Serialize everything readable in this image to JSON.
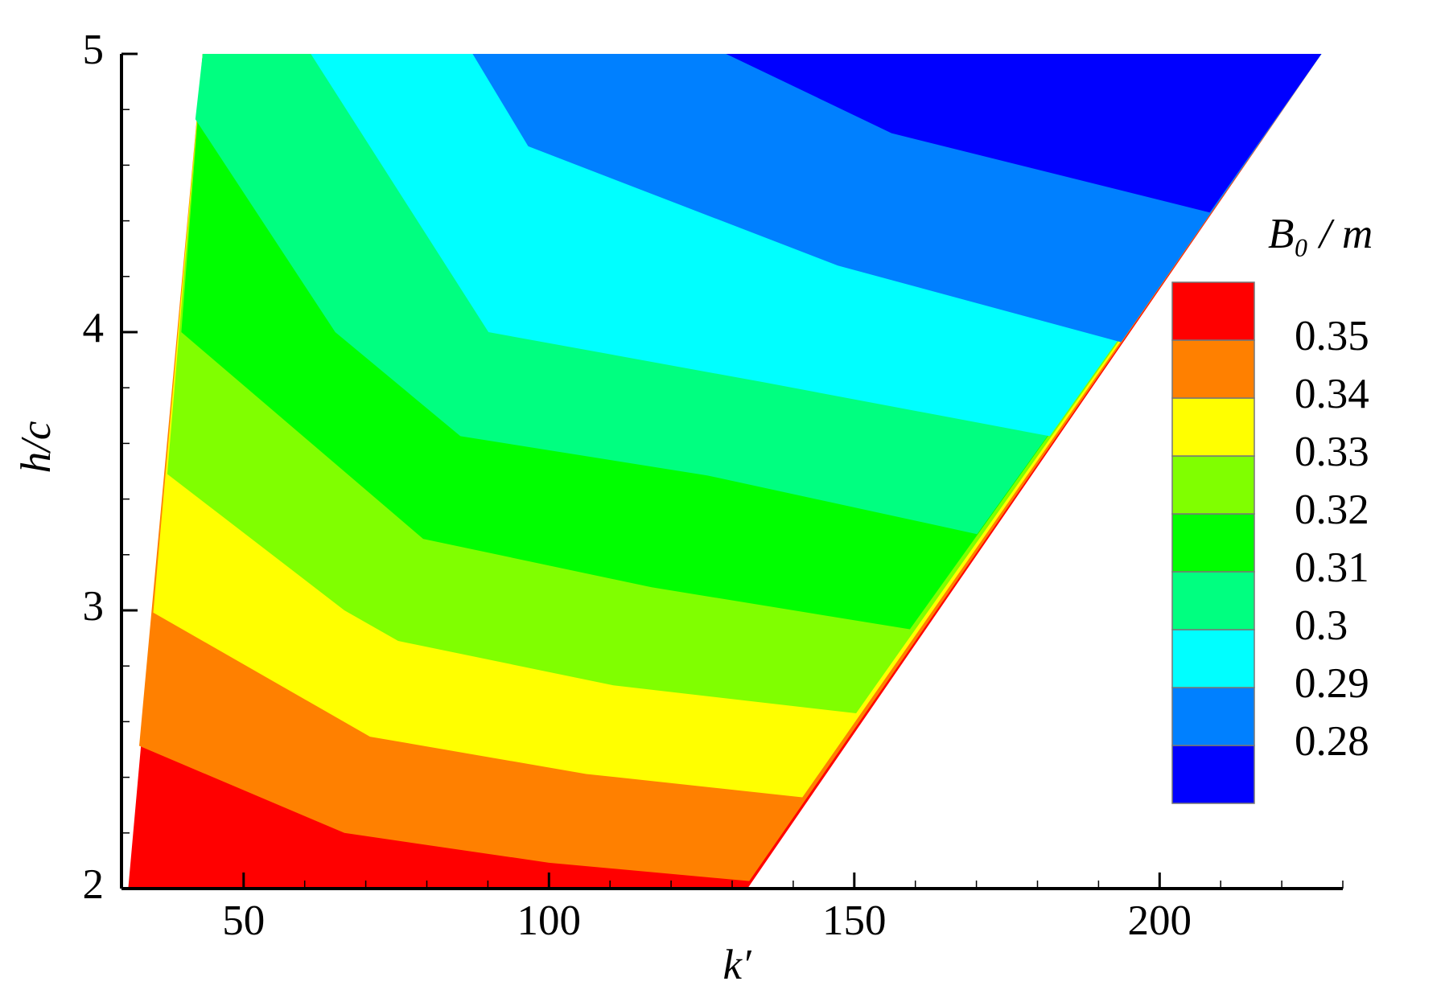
{
  "chart_data": {
    "type": "contour",
    "xlabel": "k′",
    "ylabel": "h/c",
    "legend_title": "B₀ / m",
    "xlim": [
      30,
      230
    ],
    "xticks": [
      50,
      100,
      150,
      200
    ],
    "x_minor_step": 10,
    "ylim": [
      2,
      5
    ],
    "yticks": [
      2,
      3,
      4,
      5
    ],
    "y_minor_step": 0.2,
    "domain": {
      "x": [
        31.1,
        43.3,
        226.5,
        132.5
      ],
      "y": [
        2,
        5,
        5,
        2
      ]
    },
    "levels": [
      0.28,
      0.29,
      0.3,
      0.31,
      0.32,
      0.33,
      0.34,
      0.35
    ],
    "colors": [
      "#0000ff",
      "#0080ff",
      "#00ffff",
      "#00ff80",
      "#00ff00",
      "#80ff00",
      "#ffff00",
      "#ff8000",
      "#ff0000"
    ],
    "contours": [
      {
        "x": [
          129.0,
          156.1,
          208.2
        ],
        "y": [
          5,
          4.715,
          4.43
        ]
      },
      {
        "x": [
          87.5,
          96.6,
          147.3,
          193.7
        ],
        "y": [
          5,
          4.668,
          4.239,
          3.964
        ]
      },
      {
        "x": [
          61.0,
          90.1,
          135.1,
          182.0
        ],
        "y": [
          5,
          4.0,
          3.82,
          3.626
        ]
      },
      {
        "x": [
          42.1,
          65.0,
          85.5,
          125.9,
          170.1
        ],
        "y": [
          4.765,
          4.0,
          3.626,
          3.485,
          3.274
        ]
      },
      {
        "x": [
          39.8,
          79.4,
          116.8,
          159.1
        ],
        "y": [
          4.0,
          3.257,
          3.083,
          2.932
        ]
      },
      {
        "x": [
          37.5,
          66.5,
          75.3,
          110.7,
          150.3
        ],
        "y": [
          3.49,
          3.0,
          2.89,
          2.73,
          2.63
        ]
      },
      {
        "x": [
          35.2,
          70.7,
          106.1,
          141.5
        ],
        "y": [
          2.992,
          2.546,
          2.412,
          2.328
        ]
      },
      {
        "x": [
          32.9,
          66.5,
          100.0,
          132.8
        ],
        "y": [
          2.513,
          2.2,
          2.093,
          2.027
        ]
      }
    ]
  }
}
